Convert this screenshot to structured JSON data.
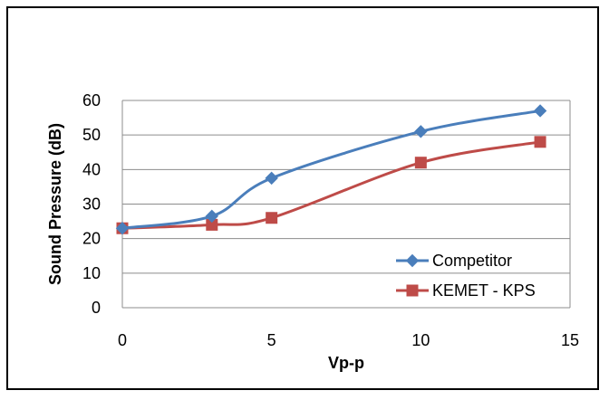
{
  "chart_data": {
    "type": "line",
    "title": "",
    "xlabel": "Vp-p",
    "ylabel": "Sound Pressure (dB)",
    "xlim": [
      0,
      15
    ],
    "ylim": [
      0,
      60
    ],
    "x_ticks": [
      "0",
      "5",
      "10",
      "15"
    ],
    "y_ticks": [
      "0",
      "10",
      "20",
      "30",
      "40",
      "50",
      "60"
    ],
    "grid": "horizontal",
    "legend_position": "bottom-right",
    "series": [
      {
        "name": "Competitor",
        "color": "#4A7EBB",
        "marker": "diamond",
        "points": [
          {
            "x": 0,
            "y": 23
          },
          {
            "x": 3,
            "y": 26.5
          },
          {
            "x": 5,
            "y": 37.5
          },
          {
            "x": 10,
            "y": 51
          },
          {
            "x": 14,
            "y": 57
          }
        ]
      },
      {
        "name": "KEMET - KPS",
        "color": "#BE4B48",
        "marker": "square",
        "points": [
          {
            "x": 0,
            "y": 23
          },
          {
            "x": 3,
            "y": 24
          },
          {
            "x": 5,
            "y": 26
          },
          {
            "x": 10,
            "y": 42
          },
          {
            "x": 14,
            "y": 48
          }
        ]
      }
    ]
  }
}
